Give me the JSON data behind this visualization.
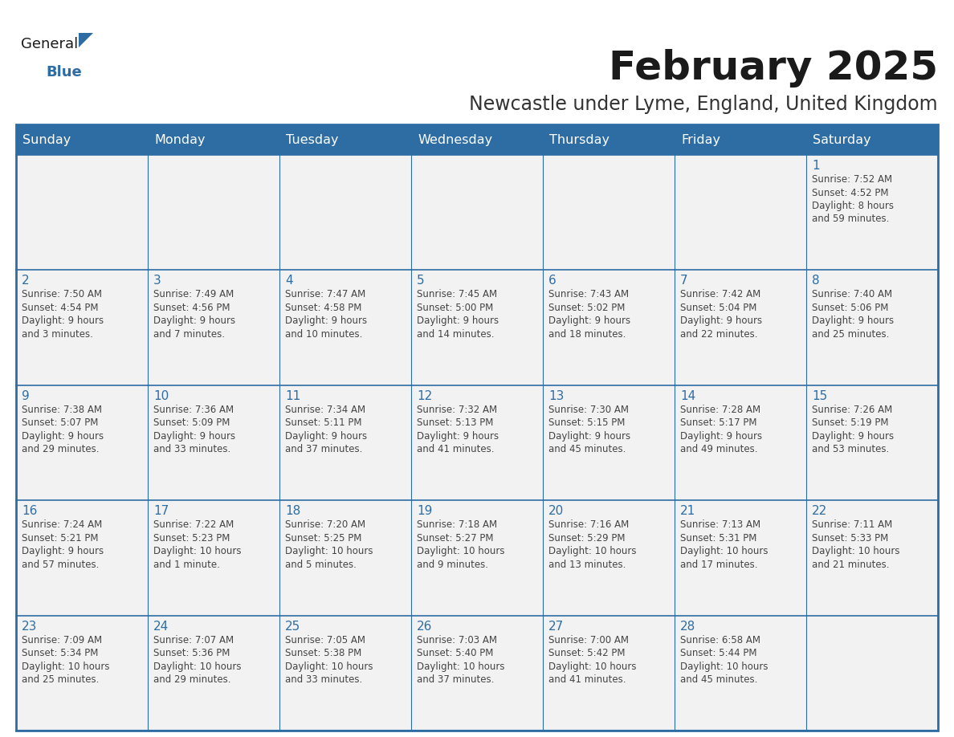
{
  "title": "February 2025",
  "subtitle": "Newcastle under Lyme, England, United Kingdom",
  "header_bg": "#2E6DA4",
  "header_text_color": "#FFFFFF",
  "cell_bg_light": "#F2F2F2",
  "border_color": "#2E6DA4",
  "row_divider_color": "#2E6DA4",
  "title_color": "#1a1a1a",
  "subtitle_color": "#333333",
  "day_number_color": "#2E6DA4",
  "info_color": "#444444",
  "day_headers": [
    "Sunday",
    "Monday",
    "Tuesday",
    "Wednesday",
    "Thursday",
    "Friday",
    "Saturday"
  ],
  "weeks": [
    [
      {
        "day": "",
        "info": ""
      },
      {
        "day": "",
        "info": ""
      },
      {
        "day": "",
        "info": ""
      },
      {
        "day": "",
        "info": ""
      },
      {
        "day": "",
        "info": ""
      },
      {
        "day": "",
        "info": ""
      },
      {
        "day": "1",
        "info": "Sunrise: 7:52 AM\nSunset: 4:52 PM\nDaylight: 8 hours\nand 59 minutes."
      }
    ],
    [
      {
        "day": "2",
        "info": "Sunrise: 7:50 AM\nSunset: 4:54 PM\nDaylight: 9 hours\nand 3 minutes."
      },
      {
        "day": "3",
        "info": "Sunrise: 7:49 AM\nSunset: 4:56 PM\nDaylight: 9 hours\nand 7 minutes."
      },
      {
        "day": "4",
        "info": "Sunrise: 7:47 AM\nSunset: 4:58 PM\nDaylight: 9 hours\nand 10 minutes."
      },
      {
        "day": "5",
        "info": "Sunrise: 7:45 AM\nSunset: 5:00 PM\nDaylight: 9 hours\nand 14 minutes."
      },
      {
        "day": "6",
        "info": "Sunrise: 7:43 AM\nSunset: 5:02 PM\nDaylight: 9 hours\nand 18 minutes."
      },
      {
        "day": "7",
        "info": "Sunrise: 7:42 AM\nSunset: 5:04 PM\nDaylight: 9 hours\nand 22 minutes."
      },
      {
        "day": "8",
        "info": "Sunrise: 7:40 AM\nSunset: 5:06 PM\nDaylight: 9 hours\nand 25 minutes."
      }
    ],
    [
      {
        "day": "9",
        "info": "Sunrise: 7:38 AM\nSunset: 5:07 PM\nDaylight: 9 hours\nand 29 minutes."
      },
      {
        "day": "10",
        "info": "Sunrise: 7:36 AM\nSunset: 5:09 PM\nDaylight: 9 hours\nand 33 minutes."
      },
      {
        "day": "11",
        "info": "Sunrise: 7:34 AM\nSunset: 5:11 PM\nDaylight: 9 hours\nand 37 minutes."
      },
      {
        "day": "12",
        "info": "Sunrise: 7:32 AM\nSunset: 5:13 PM\nDaylight: 9 hours\nand 41 minutes."
      },
      {
        "day": "13",
        "info": "Sunrise: 7:30 AM\nSunset: 5:15 PM\nDaylight: 9 hours\nand 45 minutes."
      },
      {
        "day": "14",
        "info": "Sunrise: 7:28 AM\nSunset: 5:17 PM\nDaylight: 9 hours\nand 49 minutes."
      },
      {
        "day": "15",
        "info": "Sunrise: 7:26 AM\nSunset: 5:19 PM\nDaylight: 9 hours\nand 53 minutes."
      }
    ],
    [
      {
        "day": "16",
        "info": "Sunrise: 7:24 AM\nSunset: 5:21 PM\nDaylight: 9 hours\nand 57 minutes."
      },
      {
        "day": "17",
        "info": "Sunrise: 7:22 AM\nSunset: 5:23 PM\nDaylight: 10 hours\nand 1 minute."
      },
      {
        "day": "18",
        "info": "Sunrise: 7:20 AM\nSunset: 5:25 PM\nDaylight: 10 hours\nand 5 minutes."
      },
      {
        "day": "19",
        "info": "Sunrise: 7:18 AM\nSunset: 5:27 PM\nDaylight: 10 hours\nand 9 minutes."
      },
      {
        "day": "20",
        "info": "Sunrise: 7:16 AM\nSunset: 5:29 PM\nDaylight: 10 hours\nand 13 minutes."
      },
      {
        "day": "21",
        "info": "Sunrise: 7:13 AM\nSunset: 5:31 PM\nDaylight: 10 hours\nand 17 minutes."
      },
      {
        "day": "22",
        "info": "Sunrise: 7:11 AM\nSunset: 5:33 PM\nDaylight: 10 hours\nand 21 minutes."
      }
    ],
    [
      {
        "day": "23",
        "info": "Sunrise: 7:09 AM\nSunset: 5:34 PM\nDaylight: 10 hours\nand 25 minutes."
      },
      {
        "day": "24",
        "info": "Sunrise: 7:07 AM\nSunset: 5:36 PM\nDaylight: 10 hours\nand 29 minutes."
      },
      {
        "day": "25",
        "info": "Sunrise: 7:05 AM\nSunset: 5:38 PM\nDaylight: 10 hours\nand 33 minutes."
      },
      {
        "day": "26",
        "info": "Sunrise: 7:03 AM\nSunset: 5:40 PM\nDaylight: 10 hours\nand 37 minutes."
      },
      {
        "day": "27",
        "info": "Sunrise: 7:00 AM\nSunset: 5:42 PM\nDaylight: 10 hours\nand 41 minutes."
      },
      {
        "day": "28",
        "info": "Sunrise: 6:58 AM\nSunset: 5:44 PM\nDaylight: 10 hours\nand 45 minutes."
      },
      {
        "day": "",
        "info": ""
      }
    ]
  ],
  "logo_text1": "General",
  "logo_text2": "Blue",
  "logo_color1": "#1a1a1a",
  "logo_color2": "#2E6DA4",
  "logo_triangle_color": "#2E6DA4",
  "title_fontsize": 36,
  "subtitle_fontsize": 17,
  "header_fontsize": 11.5,
  "day_num_fontsize": 11,
  "info_fontsize": 8.5
}
